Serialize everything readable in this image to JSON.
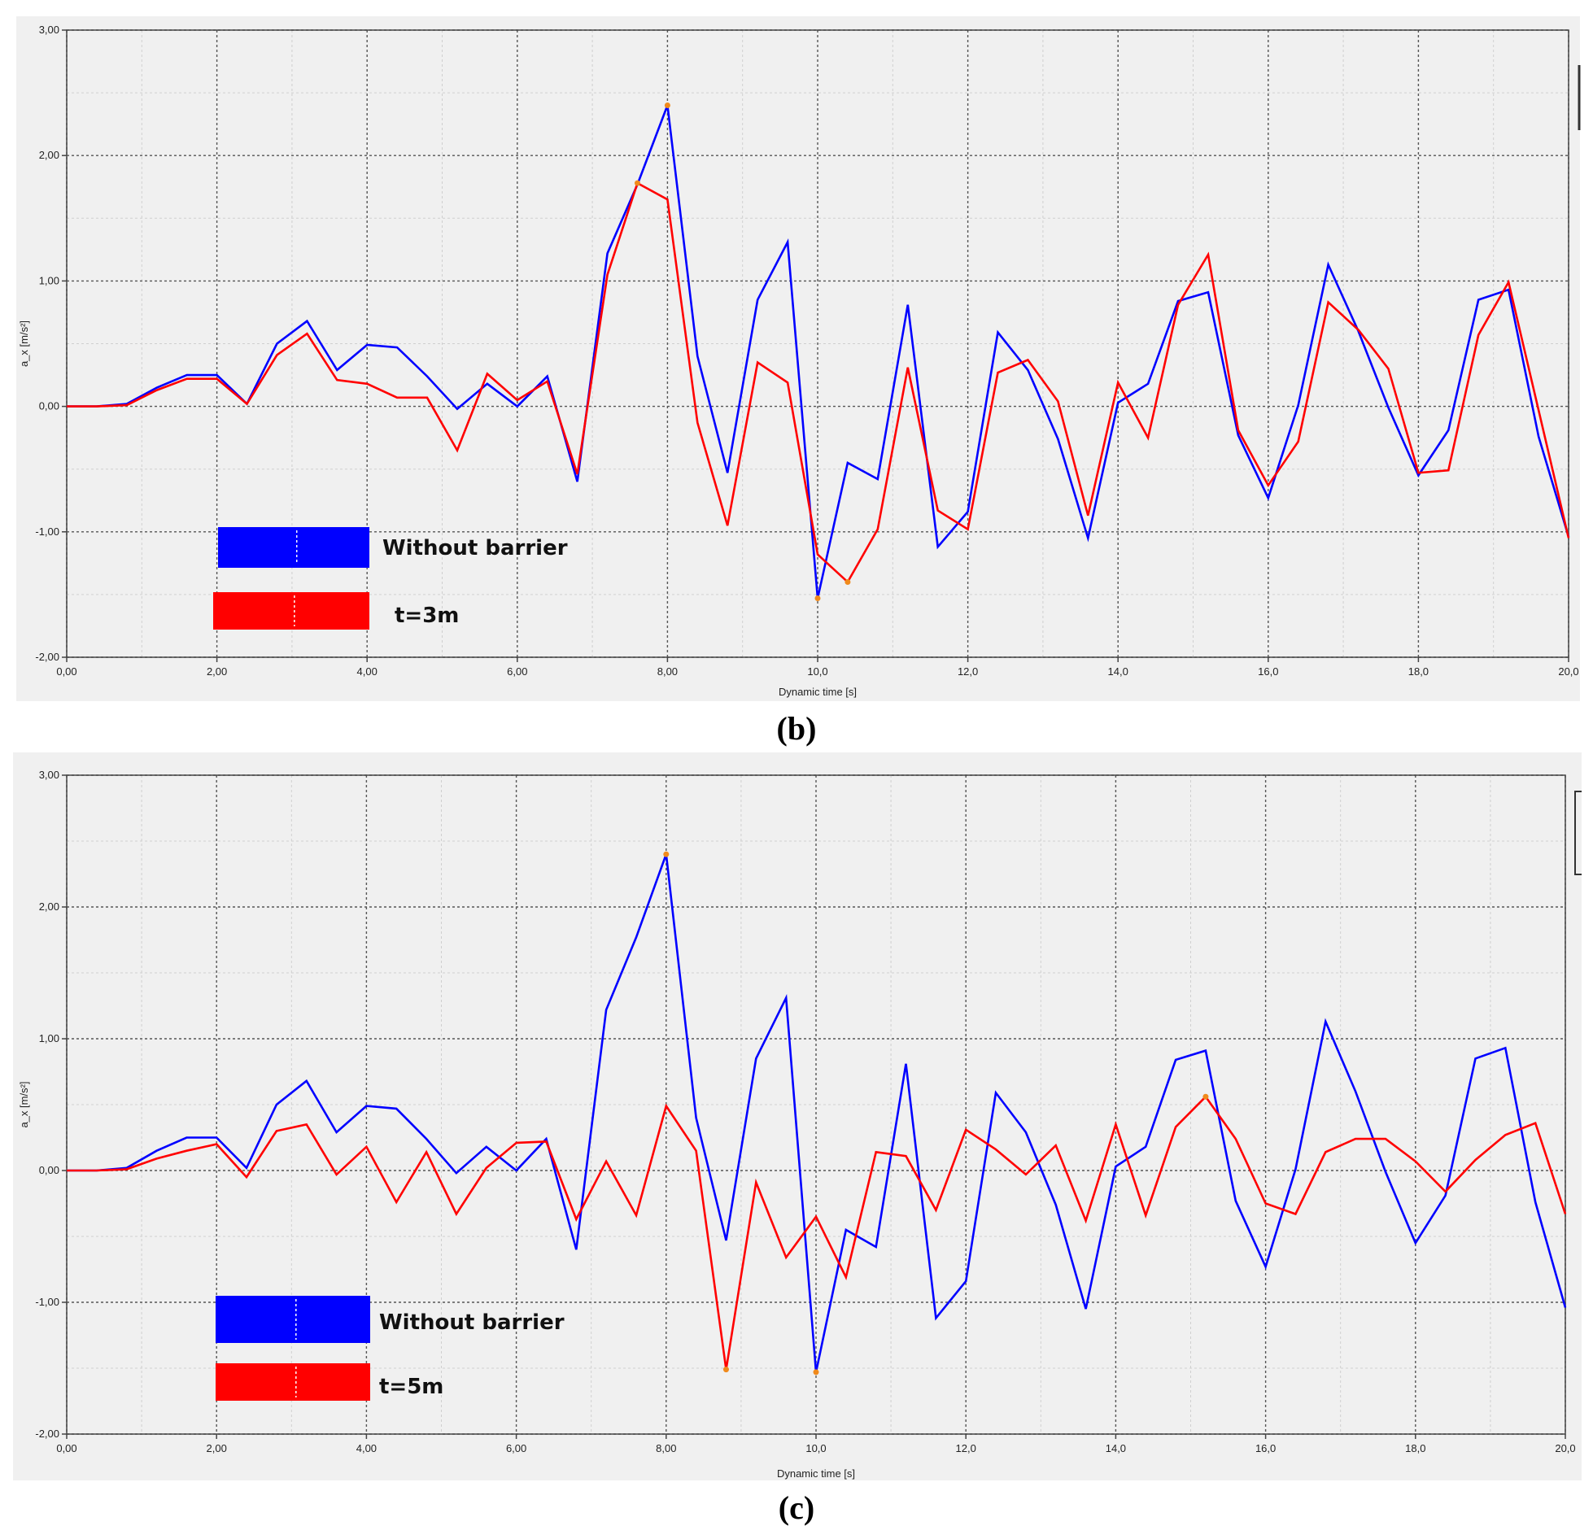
{
  "captions": [
    "(b)",
    "(c)"
  ],
  "chart_data": [
    {
      "type": "line",
      "panel": "(b)",
      "xlabel": "Dynamic time [s]",
      "ylabel": "a_x [m/s²]",
      "xlim": [
        0,
        20
      ],
      "ylim": [
        -2,
        3
      ],
      "xticks": [
        0,
        2,
        4,
        6,
        8,
        10,
        12,
        14,
        16,
        18,
        20
      ],
      "xtick_labels": [
        "0,00",
        "2,00",
        "4,00",
        "6,00",
        "8,00",
        "10,0",
        "12,0",
        "14,0",
        "16,0",
        "18,0",
        "20,0"
      ],
      "yticks": [
        -2,
        -1,
        0,
        1,
        2,
        3
      ],
      "ytick_labels": [
        "-2,00",
        "-1,00",
        "0,00",
        "1,00",
        "2,00",
        "3,00"
      ],
      "grid": true,
      "legend_position": "bottom-left",
      "series": [
        {
          "name": "Without barrier",
          "color": "#0000ff",
          "points": [
            [
              0,
              0
            ],
            [
              0.4,
              0
            ],
            [
              0.8,
              0.02
            ],
            [
              1.2,
              0.15
            ],
            [
              1.6,
              0.25
            ],
            [
              2,
              0.25
            ],
            [
              2.4,
              0.02
            ],
            [
              2.8,
              0.5
            ],
            [
              3.2,
              0.68
            ],
            [
              3.6,
              0.29
            ],
            [
              4,
              0.49
            ],
            [
              4.4,
              0.47
            ],
            [
              4.8,
              0.24
            ],
            [
              5.2,
              -0.02
            ],
            [
              5.6,
              0.18
            ],
            [
              6,
              0
            ],
            [
              6.4,
              0.24
            ],
            [
              6.8,
              -0.6
            ],
            [
              7.2,
              1.22
            ],
            [
              7.6,
              1.77
            ],
            [
              8,
              2.4
            ],
            [
              8.4,
              0.4
            ],
            [
              8.8,
              -0.53
            ],
            [
              9.2,
              0.85
            ],
            [
              9.6,
              1.31
            ],
            [
              10,
              -1.53
            ],
            [
              10.4,
              -0.45
            ],
            [
              10.8,
              -0.58
            ],
            [
              11.2,
              0.81
            ],
            [
              11.6,
              -1.12
            ],
            [
              12,
              -0.84
            ],
            [
              12.4,
              0.59
            ],
            [
              12.8,
              0.29
            ],
            [
              13.2,
              -0.26
            ],
            [
              13.6,
              -1.05
            ],
            [
              14,
              0.03
            ],
            [
              14.4,
              0.18
            ],
            [
              14.8,
              0.84
            ],
            [
              15.2,
              0.91
            ],
            [
              15.6,
              -0.23
            ],
            [
              16,
              -0.73
            ],
            [
              16.4,
              0.01
            ],
            [
              16.8,
              1.13
            ],
            [
              17.2,
              0.6
            ],
            [
              17.6,
              -0.01
            ],
            [
              18,
              -0.55
            ],
            [
              18.4,
              -0.19
            ],
            [
              18.8,
              0.85
            ],
            [
              19.2,
              0.93
            ],
            [
              19.6,
              -0.24
            ],
            [
              20,
              -1.04
            ]
          ]
        },
        {
          "name": "t=3m",
          "color": "#ff0000",
          "points": [
            [
              0,
              0
            ],
            [
              0.4,
              0
            ],
            [
              0.8,
              0.01
            ],
            [
              1.2,
              0.13
            ],
            [
              1.6,
              0.22
            ],
            [
              2,
              0.22
            ],
            [
              2.4,
              0.02
            ],
            [
              2.8,
              0.41
            ],
            [
              3.2,
              0.58
            ],
            [
              3.6,
              0.21
            ],
            [
              4,
              0.18
            ],
            [
              4.4,
              0.07
            ],
            [
              4.8,
              0.07
            ],
            [
              5.2,
              -0.35
            ],
            [
              5.6,
              0.26
            ],
            [
              6,
              0.05
            ],
            [
              6.4,
              0.2
            ],
            [
              6.8,
              -0.54
            ],
            [
              7.2,
              1.05
            ],
            [
              7.6,
              1.78
            ],
            [
              8,
              1.65
            ],
            [
              8.4,
              -0.13
            ],
            [
              8.8,
              -0.95
            ],
            [
              9.2,
              0.35
            ],
            [
              9.6,
              0.19
            ],
            [
              10,
              -1.18
            ],
            [
              10.4,
              -1.4
            ],
            [
              10.8,
              -0.98
            ],
            [
              11.2,
              0.31
            ],
            [
              11.6,
              -0.83
            ],
            [
              12,
              -0.98
            ],
            [
              12.4,
              0.27
            ],
            [
              12.8,
              0.37
            ],
            [
              13.2,
              0.04
            ],
            [
              13.6,
              -0.87
            ],
            [
              14,
              0.19
            ],
            [
              14.4,
              -0.25
            ],
            [
              14.8,
              0.81
            ],
            [
              15.2,
              1.21
            ],
            [
              15.6,
              -0.19
            ],
            [
              16,
              -0.63
            ],
            [
              16.4,
              -0.28
            ],
            [
              16.8,
              0.83
            ],
            [
              17.2,
              0.61
            ],
            [
              17.6,
              0.3
            ],
            [
              18,
              -0.53
            ],
            [
              18.4,
              -0.51
            ],
            [
              18.8,
              0.57
            ],
            [
              19.2,
              0.99
            ],
            [
              19.6,
              -0.03
            ],
            [
              20,
              -1.05
            ]
          ]
        }
      ],
      "highlighted_points": [
        [
          7.6,
          1.78
        ],
        [
          8,
          2.4
        ],
        [
          10,
          -1.53
        ],
        [
          10.4,
          -1.4
        ]
      ]
    },
    {
      "type": "line",
      "panel": "(c)",
      "xlabel": "Dynamic time [s]",
      "ylabel": "a_x [m/s²]",
      "xlim": [
        0,
        20
      ],
      "ylim": [
        -2,
        3
      ],
      "xticks": [
        0,
        2,
        4,
        6,
        8,
        10,
        12,
        14,
        16,
        18,
        20
      ],
      "xtick_labels": [
        "0,00",
        "2,00",
        "4,00",
        "6,00",
        "8,00",
        "10,0",
        "12,0",
        "14,0",
        "16,0",
        "18,0",
        "20,0"
      ],
      "yticks": [
        -2,
        -1,
        0,
        1,
        2,
        3
      ],
      "ytick_labels": [
        "-2,00",
        "-1,00",
        "0,00",
        "1,00",
        "2,00",
        "3,00"
      ],
      "grid": true,
      "legend_position": "bottom-left",
      "series": [
        {
          "name": "Without barrier",
          "color": "#0000ff",
          "points": [
            [
              0,
              0
            ],
            [
              0.4,
              0
            ],
            [
              0.8,
              0.02
            ],
            [
              1.2,
              0.15
            ],
            [
              1.6,
              0.25
            ],
            [
              2,
              0.25
            ],
            [
              2.4,
              0.02
            ],
            [
              2.8,
              0.5
            ],
            [
              3.2,
              0.68
            ],
            [
              3.6,
              0.29
            ],
            [
              4,
              0.49
            ],
            [
              4.4,
              0.47
            ],
            [
              4.8,
              0.24
            ],
            [
              5.2,
              -0.02
            ],
            [
              5.6,
              0.18
            ],
            [
              6,
              0
            ],
            [
              6.4,
              0.24
            ],
            [
              6.8,
              -0.6
            ],
            [
              7.2,
              1.22
            ],
            [
              7.6,
              1.77
            ],
            [
              8,
              2.4
            ],
            [
              8.4,
              0.4
            ],
            [
              8.8,
              -0.53
            ],
            [
              9.2,
              0.85
            ],
            [
              9.6,
              1.31
            ],
            [
              10,
              -1.53
            ],
            [
              10.4,
              -0.45
            ],
            [
              10.8,
              -0.58
            ],
            [
              11.2,
              0.81
            ],
            [
              11.6,
              -1.12
            ],
            [
              12,
              -0.84
            ],
            [
              12.4,
              0.59
            ],
            [
              12.8,
              0.29
            ],
            [
              13.2,
              -0.26
            ],
            [
              13.6,
              -1.05
            ],
            [
              14,
              0.03
            ],
            [
              14.4,
              0.18
            ],
            [
              14.8,
              0.84
            ],
            [
              15.2,
              0.91
            ],
            [
              15.6,
              -0.23
            ],
            [
              16,
              -0.73
            ],
            [
              16.4,
              0.01
            ],
            [
              16.8,
              1.13
            ],
            [
              17.2,
              0.6
            ],
            [
              17.6,
              -0.01
            ],
            [
              18,
              -0.55
            ],
            [
              18.4,
              -0.19
            ],
            [
              18.8,
              0.85
            ],
            [
              19.2,
              0.93
            ],
            [
              19.6,
              -0.24
            ],
            [
              20,
              -1.04
            ]
          ]
        },
        {
          "name": "t=5m",
          "color": "#ff0000",
          "points": [
            [
              0,
              0
            ],
            [
              0.4,
              0
            ],
            [
              0.8,
              0.01
            ],
            [
              1.2,
              0.09
            ],
            [
              1.6,
              0.15
            ],
            [
              2,
              0.2
            ],
            [
              2.4,
              -0.05
            ],
            [
              2.8,
              0.3
            ],
            [
              3.2,
              0.35
            ],
            [
              3.6,
              -0.03
            ],
            [
              4,
              0.18
            ],
            [
              4.4,
              -0.24
            ],
            [
              4.8,
              0.14
            ],
            [
              5.2,
              -0.33
            ],
            [
              5.6,
              0.02
            ],
            [
              6,
              0.21
            ],
            [
              6.4,
              0.22
            ],
            [
              6.8,
              -0.37
            ],
            [
              7.2,
              0.07
            ],
            [
              7.6,
              -0.34
            ],
            [
              8,
              0.49
            ],
            [
              8.4,
              0.15
            ],
            [
              8.8,
              -1.51
            ],
            [
              9.2,
              -0.09
            ],
            [
              9.6,
              -0.66
            ],
            [
              10,
              -0.35
            ],
            [
              10.4,
              -0.81
            ],
            [
              10.8,
              0.14
            ],
            [
              11.2,
              0.11
            ],
            [
              11.6,
              -0.3
            ],
            [
              12,
              0.31
            ],
            [
              12.4,
              0.16
            ],
            [
              12.8,
              -0.03
            ],
            [
              13.2,
              0.19
            ],
            [
              13.6,
              -0.38
            ],
            [
              14,
              0.35
            ],
            [
              14.4,
              -0.34
            ],
            [
              14.8,
              0.33
            ],
            [
              15.2,
              0.56
            ],
            [
              15.6,
              0.24
            ],
            [
              16,
              -0.25
            ],
            [
              16.4,
              -0.33
            ],
            [
              16.8,
              0.14
            ],
            [
              17.2,
              0.24
            ],
            [
              17.6,
              0.24
            ],
            [
              18,
              0.07
            ],
            [
              18.4,
              -0.16
            ],
            [
              18.8,
              0.08
            ],
            [
              19.2,
              0.27
            ],
            [
              19.6,
              0.36
            ],
            [
              20,
              -0.33
            ]
          ]
        }
      ],
      "highlighted_points": [
        [
          8,
          2.4
        ],
        [
          8.8,
          -1.51
        ],
        [
          10,
          -1.53
        ],
        [
          15.2,
          0.56
        ]
      ]
    }
  ]
}
